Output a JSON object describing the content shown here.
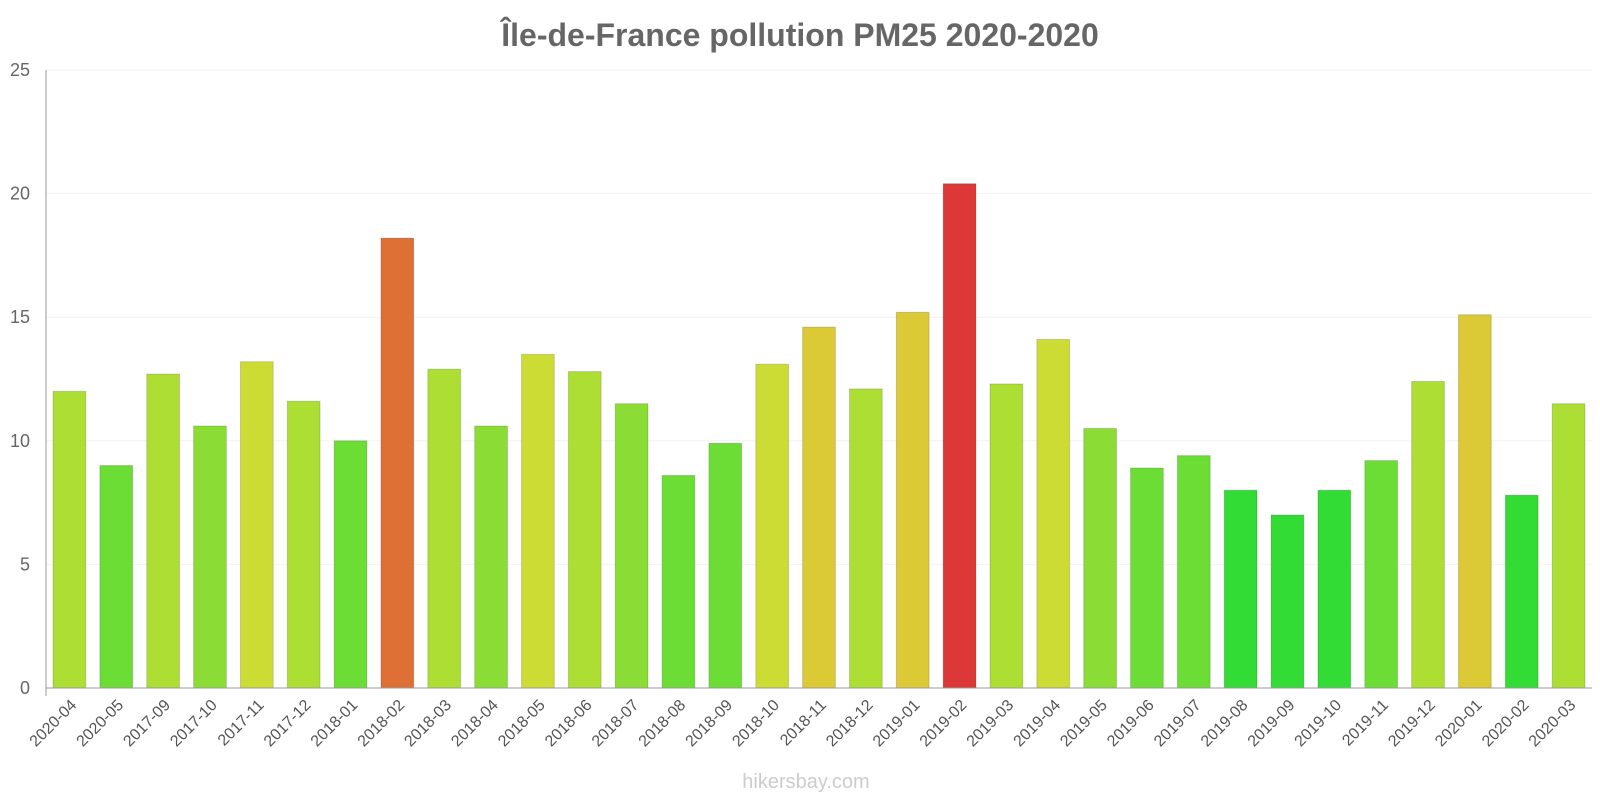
{
  "chart_data": {
    "type": "bar",
    "title": "Île-de-France pollution PM25 2020-2020",
    "xlabel": "",
    "ylabel": "",
    "ylim": [
      0,
      25
    ],
    "yticks": [
      0,
      5,
      10,
      15,
      20,
      25
    ],
    "grid": true,
    "categories": [
      "2020-04",
      "2020-05",
      "2017-09",
      "2017-10",
      "2017-11",
      "2017-12",
      "2018-01",
      "2018-02",
      "2018-03",
      "2018-04",
      "2018-05",
      "2018-06",
      "2018-07",
      "2018-08",
      "2018-09",
      "2018-10",
      "2018-11",
      "2018-12",
      "2019-01",
      "2019-02",
      "2019-03",
      "2019-04",
      "2019-05",
      "2019-06",
      "2019-07",
      "2019-08",
      "2019-09",
      "2019-10",
      "2019-11",
      "2019-12",
      "2020-01",
      "2020-02",
      "2020-03"
    ],
    "values": [
      12,
      9,
      12.7,
      10.6,
      13.2,
      11.6,
      10,
      18.2,
      12.9,
      10.6,
      13.5,
      12.8,
      11.5,
      8.6,
      9.9,
      13.1,
      14.6,
      12.1,
      15.2,
      20.4,
      12.3,
      14.1,
      10.5,
      8.9,
      9.4,
      8,
      7,
      8,
      9.2,
      12.4,
      15.1,
      7.8,
      11.5
    ],
    "colors": [
      "#acde33",
      "#6cdd35",
      "#acde33",
      "#8bdc34",
      "#cddc35",
      "#acde33",
      "#6cdd35",
      "#de6f35",
      "#acde33",
      "#8bdc34",
      "#cddc35",
      "#acde33",
      "#8bdc34",
      "#6cdd35",
      "#6cdd35",
      "#cddc35",
      "#dbc935",
      "#acde33",
      "#dbc935",
      "#dc3838",
      "#acde33",
      "#cddc35",
      "#8bdc34",
      "#6cdd35",
      "#6cdd35",
      "#33dc35",
      "#33dc35",
      "#33dc35",
      "#6cdd35",
      "#acde33",
      "#dbc935",
      "#33dc35",
      "#acde33"
    ]
  },
  "watermark": "hikersbay.com"
}
